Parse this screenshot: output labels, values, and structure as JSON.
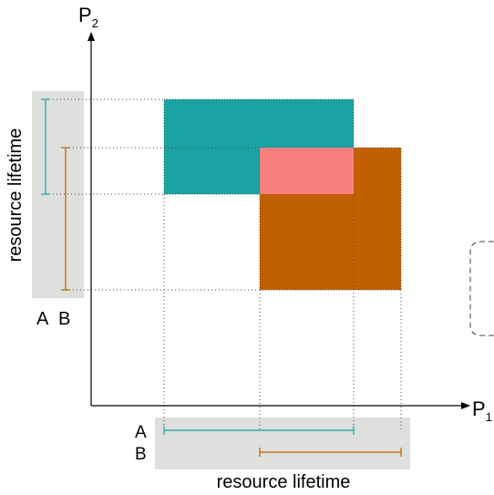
{
  "axes": {
    "x_label": "P",
    "x_subscript": "1",
    "y_label": "P",
    "y_subscript": "2"
  },
  "resources": [
    {
      "name": "A",
      "color": "#1aa3a3"
    },
    {
      "name": "B",
      "color": "#c06000"
    }
  ],
  "overlap_color": "#fa8080",
  "bar_background_color": "#dde0dd",
  "bottom_bar": {
    "caption": "resource lifetime"
  },
  "left_bar": {
    "caption": "resource lifetime"
  }
}
